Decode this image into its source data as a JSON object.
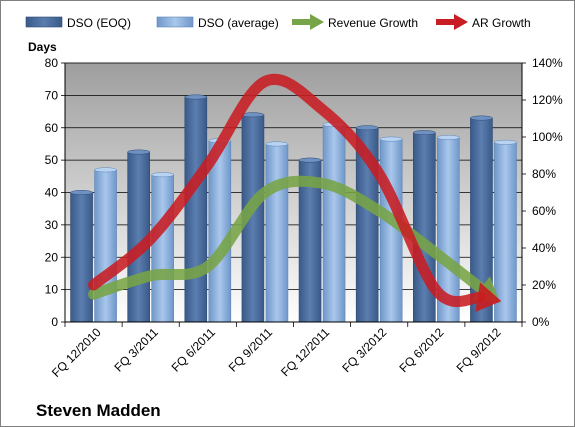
{
  "chart_data": {
    "type": "bar",
    "categories": [
      "FQ 12/2010",
      "FQ 3/2011",
      "FQ 6/2011",
      "FQ 9/2011",
      "FQ 12/2011",
      "FQ 3/2012",
      "FQ 6/2012",
      "FQ 9/2012"
    ],
    "series": [
      {
        "name": "DSO (EOQ)",
        "type": "bar",
        "axis": "left",
        "color": "#4A6C9E",
        "values": [
          40,
          52.5,
          69.5,
          64,
          50,
          60,
          58.5,
          63
        ]
      },
      {
        "name": "DSO (average)",
        "type": "bar",
        "axis": "left",
        "color": "#8DB3E2",
        "values": [
          47,
          45.5,
          56,
          55,
          61,
          56.5,
          57,
          55.5
        ]
      },
      {
        "name": "Revenue Growth",
        "type": "arrow-line",
        "axis": "right",
        "color": "#77A446",
        "values": [
          15,
          25,
          30,
          70,
          75,
          60,
          37,
          13
        ]
      },
      {
        "name": "AR Growth",
        "type": "arrow-line",
        "axis": "right",
        "color": "#C81D22",
        "values": [
          20,
          45,
          85,
          130,
          115,
          80,
          17,
          12
        ]
      }
    ],
    "ylabel": "Days",
    "ylim": [
      0,
      80
    ],
    "yticks": [
      "0",
      "10",
      "20",
      "30",
      "40",
      "50",
      "60",
      "70",
      "80"
    ],
    "y2lim": [
      0,
      140
    ],
    "y2ticks": [
      "0%",
      "20%",
      "40%",
      "60%",
      "80%",
      "100%",
      "120%",
      "140%"
    ],
    "grid": true,
    "legend_position": "top",
    "company": "Steven Madden"
  }
}
